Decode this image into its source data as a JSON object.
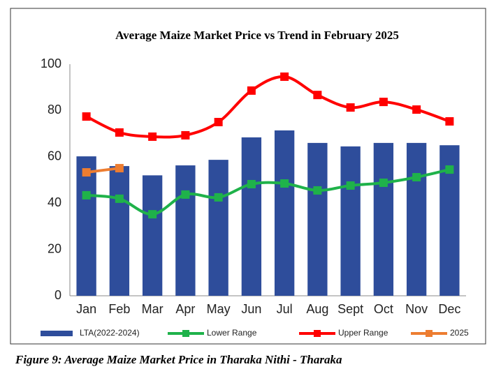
{
  "chart_data": {
    "type": "bar",
    "title": "Average Maize Market Price vs Trend in February 2025",
    "categories": [
      "Jan",
      "Feb",
      "Mar",
      "Apr",
      "May",
      "Jun",
      "Jul",
      "Aug",
      "Sept",
      "Oct",
      "Nov",
      "Dec"
    ],
    "series": [
      {
        "name": "LTA(2022-2024)",
        "type": "bar",
        "color": "#2e4d9b",
        "values": [
          60.2,
          56,
          52,
          56.3,
          58.7,
          68.4,
          71.4,
          66,
          64.5,
          66,
          66,
          65
        ]
      },
      {
        "name": "Lower Range",
        "type": "line",
        "color": "#1fb24a",
        "values": [
          43.4,
          41.9,
          35.2,
          43.7,
          42.5,
          48.2,
          48.5,
          45.5,
          47.6,
          48.8,
          51.2,
          54.5
        ]
      },
      {
        "name": "Upper Range",
        "type": "line",
        "color": "#ff0000",
        "values": [
          77.4,
          70.5,
          68.7,
          69.3,
          75,
          88.6,
          94.6,
          86.7,
          81.3,
          83.7,
          80.4,
          75.3
        ]
      },
      {
        "name": "2025",
        "type": "line",
        "color": "#ed7d31",
        "values": [
          53.3,
          55.1,
          null,
          null,
          null,
          null,
          null,
          null,
          null,
          null,
          null,
          null
        ]
      }
    ],
    "ylim": [
      0,
      100
    ],
    "yticks": [
      0,
      20,
      40,
      60,
      80,
      100
    ],
    "grid": false,
    "legend": "bottom"
  },
  "caption": "Figure 9: Average Maize Market Price in Tharaka Nithi - Tharaka"
}
